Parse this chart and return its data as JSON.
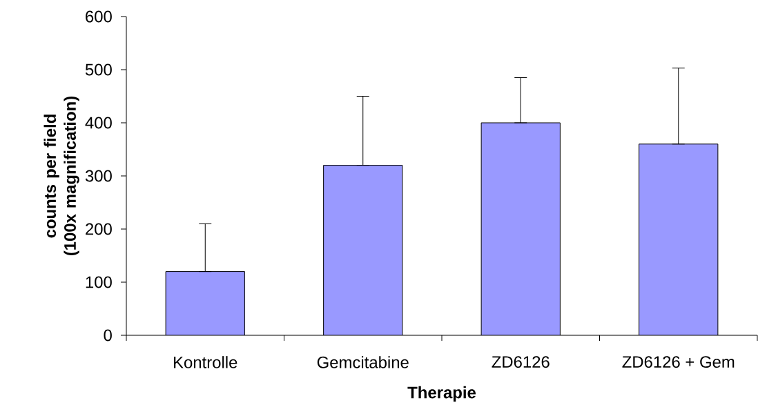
{
  "chart_data": {
    "type": "bar",
    "xlabel": "Therapie",
    "ylabel": "counts per field (100x magnification)",
    "categories": [
      "Kontrolle",
      "Gemcitabine",
      "ZD6126",
      "ZD6126 + Gem"
    ],
    "values": [
      120,
      320,
      400,
      360
    ],
    "errors": [
      [
        120,
        210
      ],
      [
        320,
        450
      ],
      [
        400,
        485
      ],
      [
        360,
        503
      ]
    ],
    "color": "#9999ff",
    "ylim": [
      0,
      600
    ],
    "yticks": [
      0,
      100,
      200,
      300,
      400,
      500,
      600
    ]
  }
}
